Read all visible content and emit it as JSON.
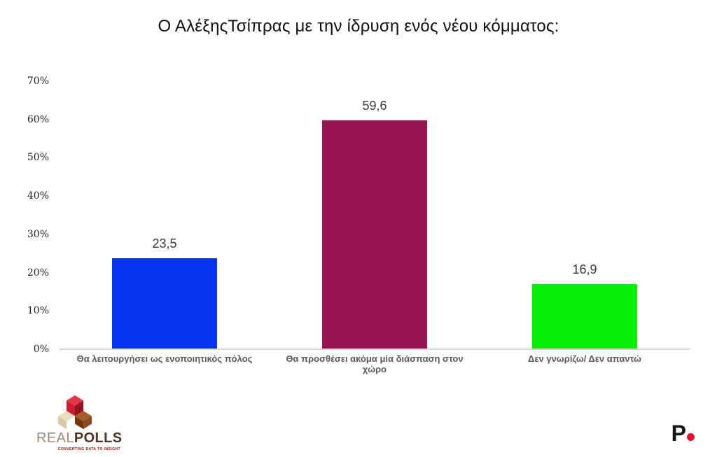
{
  "chart_data": {
    "type": "bar",
    "title": "Ο ΑλέξηςΤσίπρας με την ίδρυση ενός νέου κόμματος:",
    "categories": [
      "Θα λειτουργήσει ως  ενοποιητικός πόλος",
      "Θα προσθέσει ακόμα μία  διάσπαση στον χώρο",
      "Δεν γνωρίζω/ Δεν απαντώ"
    ],
    "values": [
      23.5,
      59.6,
      16.9
    ],
    "value_labels": [
      "23,5",
      "59,6",
      "16,9"
    ],
    "bar_colors": [
      "#0534f0",
      "#96154e",
      "#05ee05"
    ],
    "xlabel": "",
    "ylabel": "",
    "ylim": [
      0,
      70
    ],
    "ytick_values": [
      0,
      10,
      20,
      30,
      40,
      50,
      60,
      70
    ],
    "yticks": [
      "0%",
      "10%",
      "20%",
      "30%",
      "40%",
      "50%",
      "60%",
      "70%"
    ],
    "grid": false,
    "legend": "none",
    "axis_line_color": "#d6d6d6"
  },
  "footer": {
    "brand_left": {
      "name_part1": "REAL",
      "name_part2": "POLLS",
      "tagline": "CONVERTING DATA TO INSIGHT"
    },
    "brand_right": {
      "letter": "P",
      "dot_color": "#e8112d"
    }
  }
}
